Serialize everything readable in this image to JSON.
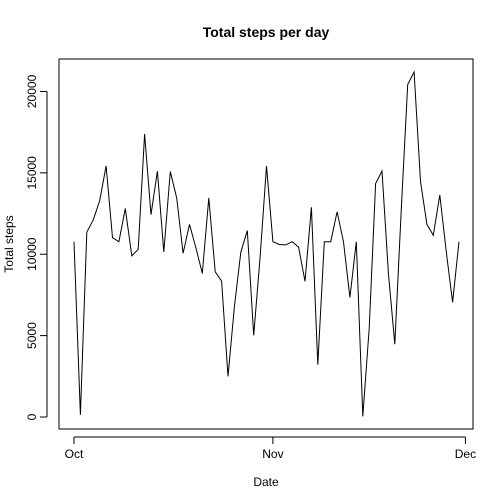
{
  "chart_data": {
    "type": "line",
    "title": "Total steps per day",
    "xlabel": "Date",
    "ylabel": "Total steps",
    "x_ticks": [
      "Oct",
      "Nov",
      "Dec"
    ],
    "x_tick_dates": [
      "2012-10-01",
      "2012-11-01",
      "2012-12-01"
    ],
    "xlim": [
      "2012-10-01",
      "2012-11-30"
    ],
    "y_ticks": [
      "0",
      "5000",
      "10000",
      "15000",
      "20000"
    ],
    "ylim": [
      0,
      21194
    ],
    "grid": false,
    "legend": "none",
    "line_color": "#000000",
    "series": [
      {
        "x": [
          "2012-10-01",
          "2012-10-02",
          "2012-10-03",
          "2012-10-04",
          "2012-10-05",
          "2012-10-06",
          "2012-10-07",
          "2012-10-08",
          "2012-10-09",
          "2012-10-10",
          "2012-10-11",
          "2012-10-12",
          "2012-10-13",
          "2012-10-14",
          "2012-10-15",
          "2012-10-16",
          "2012-10-17",
          "2012-10-18",
          "2012-10-19",
          "2012-10-20",
          "2012-10-21",
          "2012-10-22",
          "2012-10-23",
          "2012-10-24",
          "2012-10-25",
          "2012-10-26",
          "2012-10-27",
          "2012-10-28",
          "2012-10-29",
          "2012-10-30",
          "2012-10-31",
          "2012-11-01",
          "2012-11-02",
          "2012-11-03",
          "2012-11-04",
          "2012-11-05",
          "2012-11-06",
          "2012-11-07",
          "2012-11-08",
          "2012-11-09",
          "2012-11-10",
          "2012-11-11",
          "2012-11-12",
          "2012-11-13",
          "2012-11-14",
          "2012-11-15",
          "2012-11-16",
          "2012-11-17",
          "2012-11-18",
          "2012-11-19",
          "2012-11-20",
          "2012-11-21",
          "2012-11-22",
          "2012-11-23",
          "2012-11-24",
          "2012-11-25",
          "2012-11-26",
          "2012-11-27",
          "2012-11-28",
          "2012-11-29",
          "2012-11-30"
        ],
        "y": [
          10766,
          126,
          11352,
          12116,
          13294,
          15420,
          11015,
          10766,
          12811,
          9900,
          10304,
          17382,
          12426,
          15098,
          10139,
          15084,
          13452,
          10056,
          11829,
          10395,
          8821,
          13460,
          8918,
          8355,
          2492,
          6778,
          10119,
          11458,
          5018,
          9819,
          15414,
          10766,
          10600,
          10571,
          10766,
          10439,
          8334,
          12883,
          3219,
          10766,
          10766,
          12608,
          10765,
          7336,
          10766,
          41,
          5441,
          14339,
          15110,
          8841,
          4472,
          12787,
          20427,
          21194,
          14478,
          11834,
          11162,
          13646,
          10183,
          7047,
          10766
        ]
      }
    ]
  }
}
